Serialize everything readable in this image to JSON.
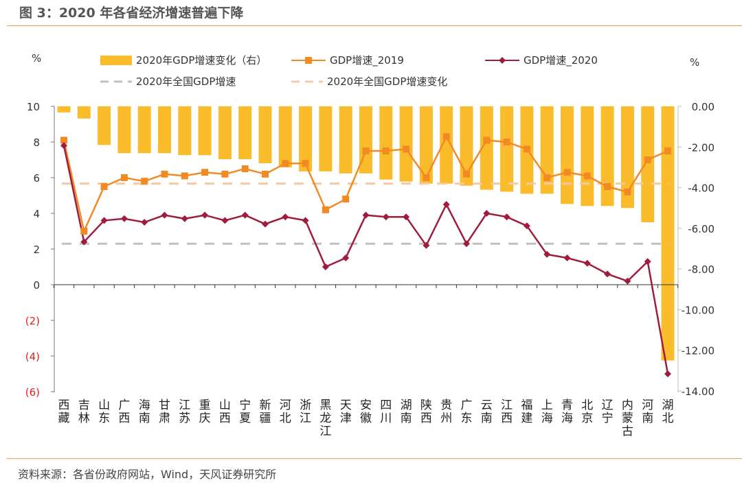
{
  "title": "图 3：2020 年各省经济增速普遍下降",
  "source": "资料来源：各省份政府网站，Wind，天风证券研究所",
  "chart_data": {
    "type": "bar+line",
    "left_unit": "%",
    "right_unit": "%",
    "categories": [
      "西藏",
      "吉林",
      "山东",
      "广西",
      "海南",
      "甘肃",
      "江苏",
      "重庆",
      "山西",
      "宁夏",
      "新疆",
      "河北",
      "浙江",
      "黑龙江",
      "天津",
      "安徽",
      "四川",
      "湖南",
      "陕西",
      "贵州",
      "广东",
      "云南",
      "江西",
      "福建",
      "上海",
      "青海",
      "北京",
      "辽宁",
      "内蒙古",
      "河南",
      "湖北"
    ],
    "left_axis": {
      "range": [
        -6,
        10
      ],
      "ticks": [
        "10",
        "8",
        "6",
        "4",
        "2",
        "0",
        "(2)",
        "(4)",
        "(6)"
      ],
      "tick_values": [
        10,
        8,
        6,
        4,
        2,
        0,
        -2,
        -4,
        -6
      ]
    },
    "right_axis": {
      "range": [
        -14,
        0
      ],
      "ticks": [
        "0.00",
        "-2.00",
        "-4.00",
        "-6.00",
        "-8.00",
        "-10.00",
        "-12.00",
        "-14.00"
      ],
      "tick_values": [
        0,
        -2,
        -4,
        -6,
        -8,
        -10,
        -12,
        -14
      ]
    },
    "series": [
      {
        "name": "2020年GDP增速变化（右）",
        "kind": "bar",
        "axis": "right",
        "color": "#FBBC2C",
        "values": [
          -0.3,
          -0.6,
          -1.9,
          -2.3,
          -2.3,
          -2.3,
          -2.4,
          -2.4,
          -2.6,
          -2.6,
          -2.8,
          -3.0,
          -3.2,
          -3.2,
          -3.3,
          -3.3,
          -3.6,
          -3.7,
          -3.8,
          -3.8,
          -3.9,
          -4.1,
          -4.2,
          -4.3,
          -4.3,
          -4.8,
          -4.9,
          -4.9,
          -5.0,
          -5.7,
          -12.5
        ]
      },
      {
        "name": "GDP增速_2019",
        "kind": "line",
        "marker": "square",
        "axis": "left",
        "color": "#F28A24",
        "values": [
          8.1,
          3.0,
          5.5,
          6.0,
          5.8,
          6.2,
          6.1,
          6.3,
          6.2,
          6.5,
          6.2,
          6.8,
          6.8,
          4.2,
          4.8,
          7.5,
          7.5,
          7.6,
          6.0,
          8.3,
          6.2,
          8.1,
          8.0,
          7.6,
          6.0,
          6.3,
          6.1,
          5.5,
          5.2,
          7.0,
          7.5
        ]
      },
      {
        "name": "GDP增速_2020",
        "kind": "line",
        "marker": "diamond",
        "axis": "left",
        "color": "#A01C3C",
        "values": [
          7.8,
          2.4,
          3.6,
          3.7,
          3.5,
          3.9,
          3.7,
          3.9,
          3.6,
          3.9,
          3.4,
          3.8,
          3.6,
          1.0,
          1.5,
          3.9,
          3.8,
          3.8,
          2.2,
          4.5,
          2.3,
          4.0,
          3.8,
          3.3,
          1.7,
          1.5,
          1.2,
          0.6,
          0.2,
          1.3,
          -5.0
        ]
      },
      {
        "name": "2020年全国GDP增速",
        "kind": "hline",
        "axis": "left",
        "color": "#C0C0C0",
        "value": 2.3
      },
      {
        "name": "2020年全国GDP增速变化",
        "kind": "hline",
        "axis": "right",
        "color": "#F8C8A0",
        "value": -3.8
      }
    ],
    "negative_tick_color": "#E02020",
    "grid": false
  }
}
